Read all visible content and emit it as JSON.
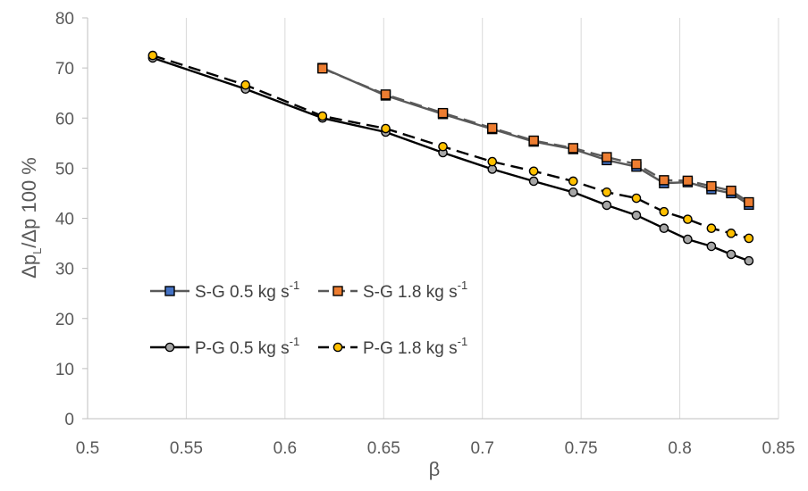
{
  "chart_data": {
    "type": "line",
    "title": "",
    "xlabel": "β",
    "ylabel": {
      "main": "Δp",
      "sub": "L",
      "rest": "/Δp 100 %"
    },
    "xlim": [
      0.5,
      0.85
    ],
    "ylim": [
      0,
      80
    ],
    "xticks": [
      0.5,
      0.55,
      0.6,
      0.65,
      0.7,
      0.75,
      0.8,
      0.85
    ],
    "xtick_labels": [
      "0.5",
      "0.55",
      "0.6",
      "0.65",
      "0.7",
      "0.75",
      "0.8",
      "0.85"
    ],
    "yticks": [
      0,
      10,
      20,
      30,
      40,
      50,
      60,
      70,
      80
    ],
    "ytick_labels": [
      "0",
      "10",
      "20",
      "30",
      "40",
      "50",
      "60",
      "70",
      "80"
    ],
    "grid": {
      "vertical": true,
      "horizontal": false
    },
    "legend": {
      "placement": "bottom-left"
    },
    "series": [
      {
        "name": {
          "base": "S-G 0.5 kg s",
          "sup": "-1"
        },
        "marker": "square",
        "fill": "#4472c4",
        "line": "#595959",
        "dash": false,
        "x": [
          0.619,
          0.651,
          0.68,
          0.705,
          0.726,
          0.746,
          0.763,
          0.778,
          0.792,
          0.804,
          0.816,
          0.826,
          0.835
        ],
        "y": [
          70.0,
          64.5,
          60.8,
          57.8,
          55.3,
          53.8,
          51.6,
          50.3,
          47.0,
          47.2,
          45.8,
          45.0,
          42.7
        ]
      },
      {
        "name": {
          "base": "S-G 1.8 kg  s",
          "sup": "-1"
        },
        "marker": "square",
        "fill": "#ed7d31",
        "line": "#595959",
        "dash": true,
        "x": [
          0.619,
          0.651,
          0.68,
          0.705,
          0.726,
          0.746,
          0.763,
          0.778,
          0.792,
          0.804,
          0.816,
          0.826,
          0.835
        ],
        "y": [
          69.9,
          64.7,
          61.0,
          58.0,
          55.5,
          54.0,
          52.2,
          50.8,
          47.6,
          47.5,
          46.4,
          45.5,
          43.2
        ]
      },
      {
        "name": {
          "base": "P-G 0.5 kg s",
          "sup": "-1"
        },
        "marker": "circle",
        "fill": "#a6a6a6",
        "line": "#000000",
        "dash": false,
        "x": [
          0.533,
          0.58,
          0.619,
          0.651,
          0.68,
          0.705,
          0.726,
          0.746,
          0.763,
          0.778,
          0.792,
          0.804,
          0.816,
          0.826,
          0.835
        ],
        "y": [
          72.0,
          65.8,
          60.0,
          57.2,
          53.1,
          49.8,
          47.4,
          45.2,
          42.6,
          40.6,
          38.0,
          35.8,
          34.4,
          32.8,
          31.5
        ]
      },
      {
        "name": {
          "base": "P-G 1.8 kg  s",
          "sup": "-1"
        },
        "marker": "circle",
        "fill": "#ffc000",
        "line": "#000000",
        "dash": true,
        "x": [
          0.533,
          0.58,
          0.619,
          0.651,
          0.68,
          0.705,
          0.726,
          0.746,
          0.763,
          0.778,
          0.792,
          0.804,
          0.816,
          0.826,
          0.835
        ],
        "y": [
          72.5,
          66.6,
          60.4,
          57.9,
          54.3,
          51.3,
          49.4,
          47.4,
          45.2,
          44.0,
          41.3,
          39.8,
          38.0,
          37.0,
          36.0
        ]
      }
    ]
  }
}
